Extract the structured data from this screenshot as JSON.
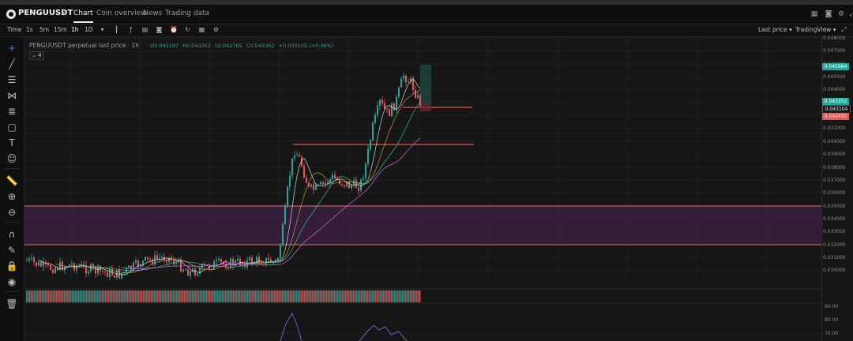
{
  "header": {
    "symbol": "PENGUUSDT",
    "tabs": [
      {
        "label": "Chart",
        "active": true
      },
      {
        "label": "Coin overview",
        "active": false
      },
      {
        "label": "News",
        "active": false
      },
      {
        "label": "Trading data",
        "active": false
      }
    ],
    "right_icons": [
      "grid-icon",
      "camera-icon",
      "gear-icon",
      "fullscreen-icon"
    ]
  },
  "toolbar": {
    "time_label": "Time",
    "intervals": [
      "1s",
      "5m",
      "15m",
      "1h",
      "1D"
    ],
    "active_interval": "1h",
    "price_mode": "Last price",
    "view_mode": "TradingView"
  },
  "legend": {
    "title": "PENGUUSDT perpetual last price · 1h",
    "open": "O0.043197",
    "high": "H0.043352",
    "low": "L0.042765",
    "close": "C0.043352",
    "change": "+0.000155 (+0.36%)",
    "indicator_count": "4"
  },
  "price_scale": {
    "labels": [
      "0.048000",
      "0.047000",
      "0.046000",
      "0.045000",
      "0.044000",
      "0.043000",
      "0.042000",
      "0.041000",
      "0.040000",
      "0.039000",
      "0.038000",
      "0.037000",
      "0.036000",
      "0.035000",
      "0.034000",
      "0.033000",
      "0.032000",
      "0.031000",
      "0.030000"
    ],
    "tag_top": {
      "text": "0.045984",
      "color": "#26a69a"
    },
    "tag_last": {
      "text": "0.043352",
      "color": "#26a69a"
    },
    "tag_countdown": {
      "text": "0.043104",
      "color": "#1c1c1c"
    },
    "tag_low": {
      "text": "0.042490",
      "color": "#ef5350"
    }
  },
  "oscillator": {
    "labels": [
      "90.00",
      "80.00",
      "70.00"
    ]
  },
  "colors": {
    "up": "#26a69a",
    "down": "#ef5350",
    "zone": "#3a1f3f",
    "zone_border": "#e0706a"
  }
}
